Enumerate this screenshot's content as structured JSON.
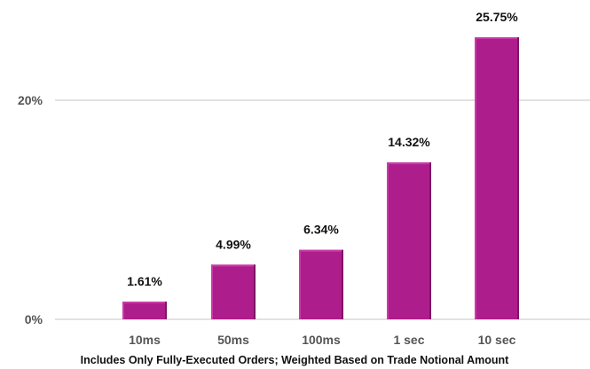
{
  "colors": {
    "bar_fill": "#AE1D8C",
    "bar_highlight": "#C83AA6",
    "bar_shadow": "#7E1466",
    "gridline": "#D9D9D9",
    "axis_text": "#555555",
    "label_text": "#111111"
  },
  "chart_data": {
    "type": "bar",
    "title": "",
    "xlabel": "Includes Only Fully-Executed Orders; Weighted Based on Trade Notional Amount",
    "ylabel": "",
    "categories": [
      "10ms",
      "50ms",
      "100ms",
      "1 sec",
      "10 sec"
    ],
    "values": [
      1.61,
      4.99,
      6.34,
      14.32,
      25.75
    ],
    "value_labels": [
      "1.61%",
      "4.99%",
      "6.34%",
      "14.32%",
      "25.75%"
    ],
    "ylim": [
      0,
      25.75
    ],
    "y_ticks": [
      0,
      20
    ],
    "y_tick_labels": [
      "0%",
      "20%"
    ],
    "grid": true,
    "legend": "none"
  }
}
